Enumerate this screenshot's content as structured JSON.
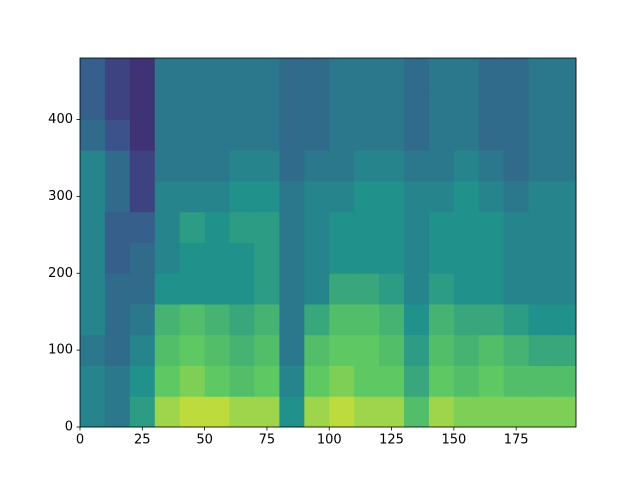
{
  "chart_data": {
    "type": "heatmap",
    "colormap": [
      "#440154",
      "#3b528b",
      "#21918c",
      "#5ec962",
      "#fde725"
    ],
    "x_bins": [
      0,
      10,
      20,
      30,
      40,
      50,
      60,
      70,
      80,
      90,
      100,
      110,
      120,
      130,
      140,
      150,
      160,
      170,
      180,
      190,
      199
    ],
    "y_bins": [
      0,
      40,
      80,
      120,
      160,
      200,
      240,
      280,
      320,
      360,
      400,
      440,
      480
    ],
    "z": [
      [
        0.45,
        0.4,
        0.55,
        0.85,
        0.9,
        0.9,
        0.85,
        0.85,
        0.5,
        0.85,
        0.9,
        0.85,
        0.85,
        0.7,
        0.85,
        0.8,
        0.8,
        0.8,
        0.8,
        0.8
      ],
      [
        0.45,
        0.4,
        0.5,
        0.75,
        0.8,
        0.75,
        0.7,
        0.75,
        0.45,
        0.75,
        0.8,
        0.75,
        0.75,
        0.6,
        0.75,
        0.7,
        0.75,
        0.7,
        0.7,
        0.7
      ],
      [
        0.4,
        0.35,
        0.45,
        0.7,
        0.75,
        0.7,
        0.65,
        0.7,
        0.4,
        0.7,
        0.75,
        0.75,
        0.7,
        0.55,
        0.7,
        0.65,
        0.7,
        0.65,
        0.6,
        0.6
      ],
      [
        0.45,
        0.35,
        0.4,
        0.65,
        0.7,
        0.65,
        0.6,
        0.65,
        0.4,
        0.6,
        0.7,
        0.7,
        0.65,
        0.5,
        0.65,
        0.6,
        0.6,
        0.55,
        0.5,
        0.5
      ],
      [
        0.45,
        0.35,
        0.35,
        0.5,
        0.5,
        0.5,
        0.5,
        0.55,
        0.4,
        0.45,
        0.6,
        0.6,
        0.55,
        0.45,
        0.55,
        0.5,
        0.5,
        0.45,
        0.45,
        0.45
      ],
      [
        0.45,
        0.3,
        0.35,
        0.45,
        0.5,
        0.5,
        0.5,
        0.55,
        0.4,
        0.45,
        0.5,
        0.5,
        0.5,
        0.45,
        0.5,
        0.5,
        0.5,
        0.45,
        0.45,
        0.45
      ],
      [
        0.45,
        0.3,
        0.3,
        0.45,
        0.55,
        0.5,
        0.55,
        0.55,
        0.4,
        0.45,
        0.5,
        0.5,
        0.5,
        0.45,
        0.5,
        0.5,
        0.5,
        0.45,
        0.45,
        0.45
      ],
      [
        0.45,
        0.35,
        0.2,
        0.45,
        0.45,
        0.45,
        0.5,
        0.5,
        0.4,
        0.45,
        0.45,
        0.5,
        0.5,
        0.45,
        0.45,
        0.5,
        0.45,
        0.4,
        0.45,
        0.45
      ],
      [
        0.45,
        0.35,
        0.2,
        0.4,
        0.4,
        0.4,
        0.45,
        0.45,
        0.35,
        0.4,
        0.4,
        0.45,
        0.45,
        0.4,
        0.4,
        0.45,
        0.4,
        0.35,
        0.4,
        0.4
      ],
      [
        0.35,
        0.25,
        0.15,
        0.4,
        0.4,
        0.4,
        0.4,
        0.4,
        0.35,
        0.35,
        0.4,
        0.4,
        0.4,
        0.35,
        0.4,
        0.4,
        0.35,
        0.35,
        0.4,
        0.4
      ],
      [
        0.3,
        0.2,
        0.15,
        0.4,
        0.4,
        0.4,
        0.4,
        0.4,
        0.35,
        0.35,
        0.4,
        0.4,
        0.4,
        0.35,
        0.4,
        0.4,
        0.35,
        0.35,
        0.4,
        0.4
      ],
      [
        0.3,
        0.2,
        0.15,
        0.4,
        0.4,
        0.4,
        0.4,
        0.4,
        0.35,
        0.35,
        0.4,
        0.4,
        0.4,
        0.35,
        0.4,
        0.4,
        0.35,
        0.35,
        0.4,
        0.4
      ]
    ],
    "zlim": [
      0,
      1
    ],
    "xlim": [
      0,
      199
    ],
    "xticks": [
      0,
      25,
      50,
      75,
      100,
      125,
      150,
      175
    ],
    "ylim": [
      0,
      480
    ],
    "yticks": [
      0,
      100,
      200,
      300,
      400
    ]
  }
}
